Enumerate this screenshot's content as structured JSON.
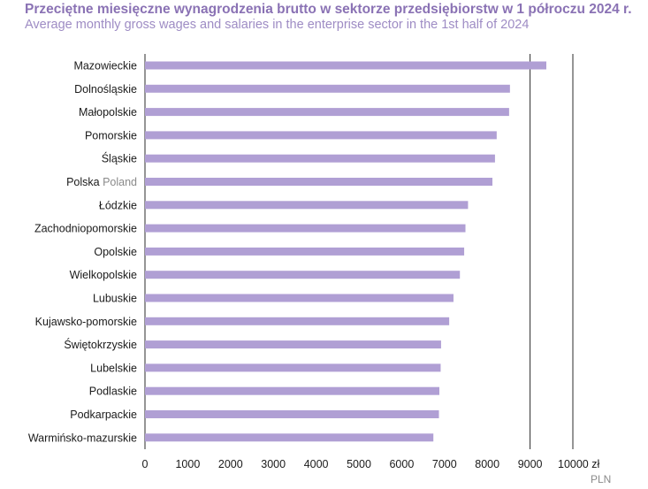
{
  "header": {
    "title": "Przeciętne miesięczne wynagrodzenia brutto w sektorze przedsiębiorstw w 1 półroczu 2024 r.",
    "subtitle": "Average monthly gross wages and salaries in the enterprise sector in the 1st half of 2024"
  },
  "colors": {
    "bar": "#b09fd4",
    "title": "#8a72b4",
    "subtitle": "#9e8cc4",
    "gridline": "#2b2b2b"
  },
  "chart_data": {
    "type": "bar",
    "orientation": "horizontal",
    "title": "Przeciętne miesięczne wynagrodzenia brutto w sektorze przedsiębiorstw w 1 półroczu 2024 r.",
    "subtitle": "Average monthly gross wages and salaries in the enterprise sector in the 1st half of 2024",
    "categories": [
      {
        "label": "Mazowieckie",
        "label_en": ""
      },
      {
        "label": "Dolnośląskie",
        "label_en": ""
      },
      {
        "label": "Małopolskie",
        "label_en": ""
      },
      {
        "label": "Pomorskie",
        "label_en": ""
      },
      {
        "label": "Śląskie",
        "label_en": ""
      },
      {
        "label": "Polska",
        "label_en": "Poland"
      },
      {
        "label": "Łódzkie",
        "label_en": ""
      },
      {
        "label": "Zachodniopomorskie",
        "label_en": ""
      },
      {
        "label": "Opolskie",
        "label_en": ""
      },
      {
        "label": "Wielkopolskie",
        "label_en": ""
      },
      {
        "label": "Lubuskie",
        "label_en": ""
      },
      {
        "label": "Kujawsko-pomorskie",
        "label_en": ""
      },
      {
        "label": "Świętokrzyskie",
        "label_en": ""
      },
      {
        "label": "Lubelskie",
        "label_en": ""
      },
      {
        "label": "Podlaskie",
        "label_en": ""
      },
      {
        "label": "Podkarpackie",
        "label_en": ""
      },
      {
        "label": "Warmińsko-mazurskie",
        "label_en": ""
      }
    ],
    "values": [
      9380,
      8530,
      8510,
      8220,
      8180,
      8120,
      7550,
      7490,
      7460,
      7360,
      7210,
      7110,
      6920,
      6910,
      6880,
      6870,
      6740
    ],
    "xlim": [
      0,
      10000
    ],
    "xticks": [
      0,
      1000,
      2000,
      3000,
      4000,
      5000,
      6000,
      7000,
      8000,
      9000,
      10000
    ],
    "xtick_suffix_last": " zł",
    "unit_label_en": "PLN",
    "gridlines_at": [
      9000,
      10000
    ],
    "legend": "none"
  }
}
